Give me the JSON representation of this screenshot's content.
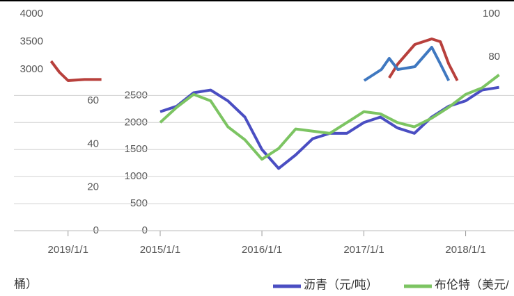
{
  "chart_data": [
    {
      "type": "line",
      "note": "桶）",
      "x": [
        "2015/1/1",
        "2015/3/1",
        "2015/5/1",
        "2015/7/1",
        "2015/9/1",
        "2015/11/1",
        "2016/1/1",
        "2016/3/1",
        "2016/5/1",
        "2016/7/1",
        "2016/9/1",
        "2016/11/1",
        "2017/1/1",
        "2017/3/1",
        "2017/5/1",
        "2017/7/1",
        "2017/9/1",
        "2017/11/1",
        "2018/1/1",
        "2018/3/1",
        "2018/5/1"
      ],
      "series": [
        {
          "name": "沥青（元/吨）",
          "color": "#4a4ec2",
          "values": [
            2200,
            2300,
            2550,
            2600,
            2400,
            2100,
            1500,
            1150,
            1400,
            1700,
            1800,
            1800,
            2000,
            2100,
            1900,
            1800,
            2100,
            2300,
            2400,
            2600,
            2650
          ]
        },
        {
          "name": "布伦特（美元/",
          "color": "#7cc462",
          "axis": "y2",
          "values": [
            50,
            57,
            63,
            60,
            48,
            42,
            33,
            38,
            47,
            46,
            45,
            50,
            55,
            54,
            50,
            48,
            52,
            57,
            63,
            66,
            72
          ]
        }
      ],
      "xlim": [
        "2015/1/1",
        "2018/6/1"
      ],
      "xticks": [
        "2015/1/1",
        "2016/1/1",
        "2017/1/1",
        "2018/1/1"
      ],
      "ylim": [
        0,
        2800
      ],
      "yticks": [
        0,
        500,
        1000,
        1500,
        2000,
        2500
      ],
      "y2lim": [
        0,
        70
      ],
      "y2ticks": [
        0,
        20,
        40,
        60
      ],
      "grid": true
    },
    {
      "type": "line",
      "series": [
        {
          "color": "#b8403c",
          "x": [
            "2018/11/1",
            "2018/12/1",
            "2019/1/1",
            "2019/3/1",
            "2019/5/1"
          ],
          "values": [
            3150,
            2950,
            2800,
            2820,
            2820
          ]
        },
        {
          "color": "#b8403c",
          "x": [
            "2022/3/1",
            "2022/4/1",
            "2022/6/1",
            "2022/8/1",
            "2022/9/1",
            "2022/10/1",
            "2022/11/1"
          ],
          "values": [
            2850,
            3100,
            3450,
            3550,
            3500,
            3100,
            2800
          ]
        },
        {
          "color": "#3f78c0",
          "x": [
            "2021/12/1",
            "2022/2/1",
            "2022/3/1",
            "2022/4/1",
            "2022/6/1",
            "2022/8/1",
            "2022/9/1",
            "2022/10/1"
          ],
          "values": [
            2800,
            3000,
            3200,
            3000,
            3050,
            3400,
            3100,
            2800
          ]
        }
      ],
      "xlim": [
        "2018/10/1",
        "2023/1/1"
      ],
      "xticks": [
        "2019/1/1"
      ],
      "ylim": [
        2700,
        4000
      ],
      "yticks": [
        3000,
        3500,
        4000
      ],
      "y2lim": [
        66.5,
        100
      ],
      "y2ticks": [
        80,
        100
      ]
    }
  ]
}
